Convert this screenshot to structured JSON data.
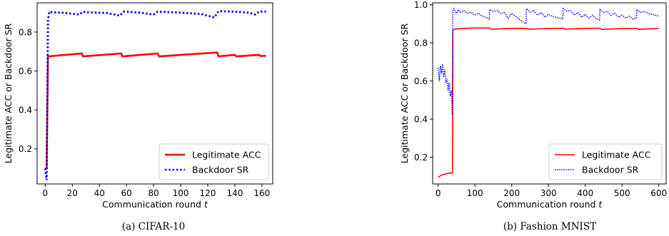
{
  "chart_data": [
    {
      "type": "line",
      "caption": "(a) CIFAR-10",
      "xlabel": "Communication round",
      "xlabel_var": "t",
      "ylabel": "Legitimate ACC or Backdoor SR",
      "xlim": [
        -6,
        168
      ],
      "ylim": [
        0.02,
        0.95
      ],
      "xticks": [
        0,
        20,
        40,
        60,
        80,
        100,
        120,
        140,
        160
      ],
      "yticks": [
        0.2,
        0.4,
        0.6,
        0.8
      ],
      "legend_position": "lower-right",
      "series": [
        {
          "name": "Legitimate ACC",
          "color": "#ff0000",
          "style": "solid",
          "x": [
            0,
            1,
            2,
            27,
            28,
            56,
            57,
            83,
            84,
            127,
            128,
            140,
            141,
            158,
            159,
            163
          ],
          "y": [
            0.1,
            0.1,
            0.675,
            0.69,
            0.675,
            0.69,
            0.675,
            0.69,
            0.675,
            0.695,
            0.675,
            0.683,
            0.675,
            0.683,
            0.677,
            0.678
          ]
        },
        {
          "name": "Backdoor SR",
          "color": "#0000ff",
          "style": "dotted",
          "x": [
            0,
            1,
            2,
            3,
            5,
            15,
            25,
            28,
            30,
            45,
            55,
            58,
            70,
            80,
            83,
            100,
            115,
            125,
            128,
            140,
            150,
            155,
            158,
            163
          ],
          "y": [
            0.1,
            0.04,
            0.86,
            0.905,
            0.902,
            0.898,
            0.89,
            0.905,
            0.902,
            0.898,
            0.885,
            0.905,
            0.9,
            0.89,
            0.905,
            0.9,
            0.893,
            0.875,
            0.907,
            0.905,
            0.9,
            0.89,
            0.905,
            0.905
          ]
        }
      ]
    },
    {
      "type": "line",
      "caption": "(b) Fashion MNIST",
      "xlabel": "Communication round",
      "xlabel_var": "t",
      "ylabel": "Legitimate ACC or Backdoor SR",
      "xlim": [
        -15,
        620
      ],
      "ylim": [
        0.06,
        1.01
      ],
      "xticks": [
        0,
        100,
        200,
        300,
        400,
        500,
        600
      ],
      "yticks": [
        0.2,
        0.4,
        0.6,
        0.8,
        1.0
      ],
      "legend_position": "lower-right",
      "series": [
        {
          "name": "Legitimate ACC",
          "color": "#ff0000",
          "style": "solid",
          "x": [
            0,
            10,
            20,
            30,
            39,
            40,
            45,
            60,
            100,
            140,
            145,
            200,
            240,
            245,
            300,
            340,
            345,
            400,
            440,
            445,
            500,
            540,
            545,
            600
          ],
          "y": [
            0.095,
            0.108,
            0.112,
            0.117,
            0.118,
            0.868,
            0.872,
            0.875,
            0.878,
            0.878,
            0.872,
            0.876,
            0.876,
            0.872,
            0.875,
            0.877,
            0.872,
            0.876,
            0.877,
            0.871,
            0.875,
            0.876,
            0.871,
            0.876
          ]
        },
        {
          "name": "Backdoor SR",
          "color": "#0000ff",
          "style": "dotted",
          "x": [
            0,
            3,
            6,
            9,
            12,
            15,
            18,
            21,
            24,
            27,
            30,
            33,
            36,
            38,
            40,
            42,
            50,
            55,
            60,
            70,
            80,
            90,
            100,
            110,
            120,
            130,
            139,
            140,
            150,
            160,
            170,
            180,
            190,
            200,
            210,
            220,
            230,
            239,
            240,
            250,
            260,
            270,
            280,
            290,
            300,
            310,
            320,
            330,
            339,
            340,
            350,
            360,
            370,
            380,
            390,
            400,
            410,
            420,
            430,
            439,
            440,
            450,
            460,
            470,
            480,
            490,
            500,
            510,
            520,
            530,
            539,
            540,
            550,
            560,
            570,
            580,
            590,
            600
          ],
          "y": [
            0.67,
            0.6,
            0.68,
            0.64,
            0.69,
            0.62,
            0.66,
            0.59,
            0.61,
            0.55,
            0.59,
            0.52,
            0.55,
            0.42,
            0.97,
            0.98,
            0.955,
            0.975,
            0.96,
            0.97,
            0.955,
            0.96,
            0.945,
            0.955,
            0.94,
            0.935,
            0.925,
            0.975,
            0.965,
            0.97,
            0.955,
            0.96,
            0.93,
            0.955,
            0.94,
            0.925,
            0.91,
            0.9,
            0.98,
            0.96,
            0.97,
            0.945,
            0.96,
            0.935,
            0.95,
            0.94,
            0.935,
            0.93,
            0.925,
            0.98,
            0.965,
            0.97,
            0.945,
            0.96,
            0.935,
            0.95,
            0.93,
            0.945,
            0.925,
            0.92,
            0.975,
            0.96,
            0.965,
            0.945,
            0.955,
            0.935,
            0.945,
            0.93,
            0.94,
            0.925,
            0.93,
            0.975,
            0.96,
            0.965,
            0.955,
            0.95,
            0.945,
            0.94
          ]
        }
      ]
    }
  ]
}
